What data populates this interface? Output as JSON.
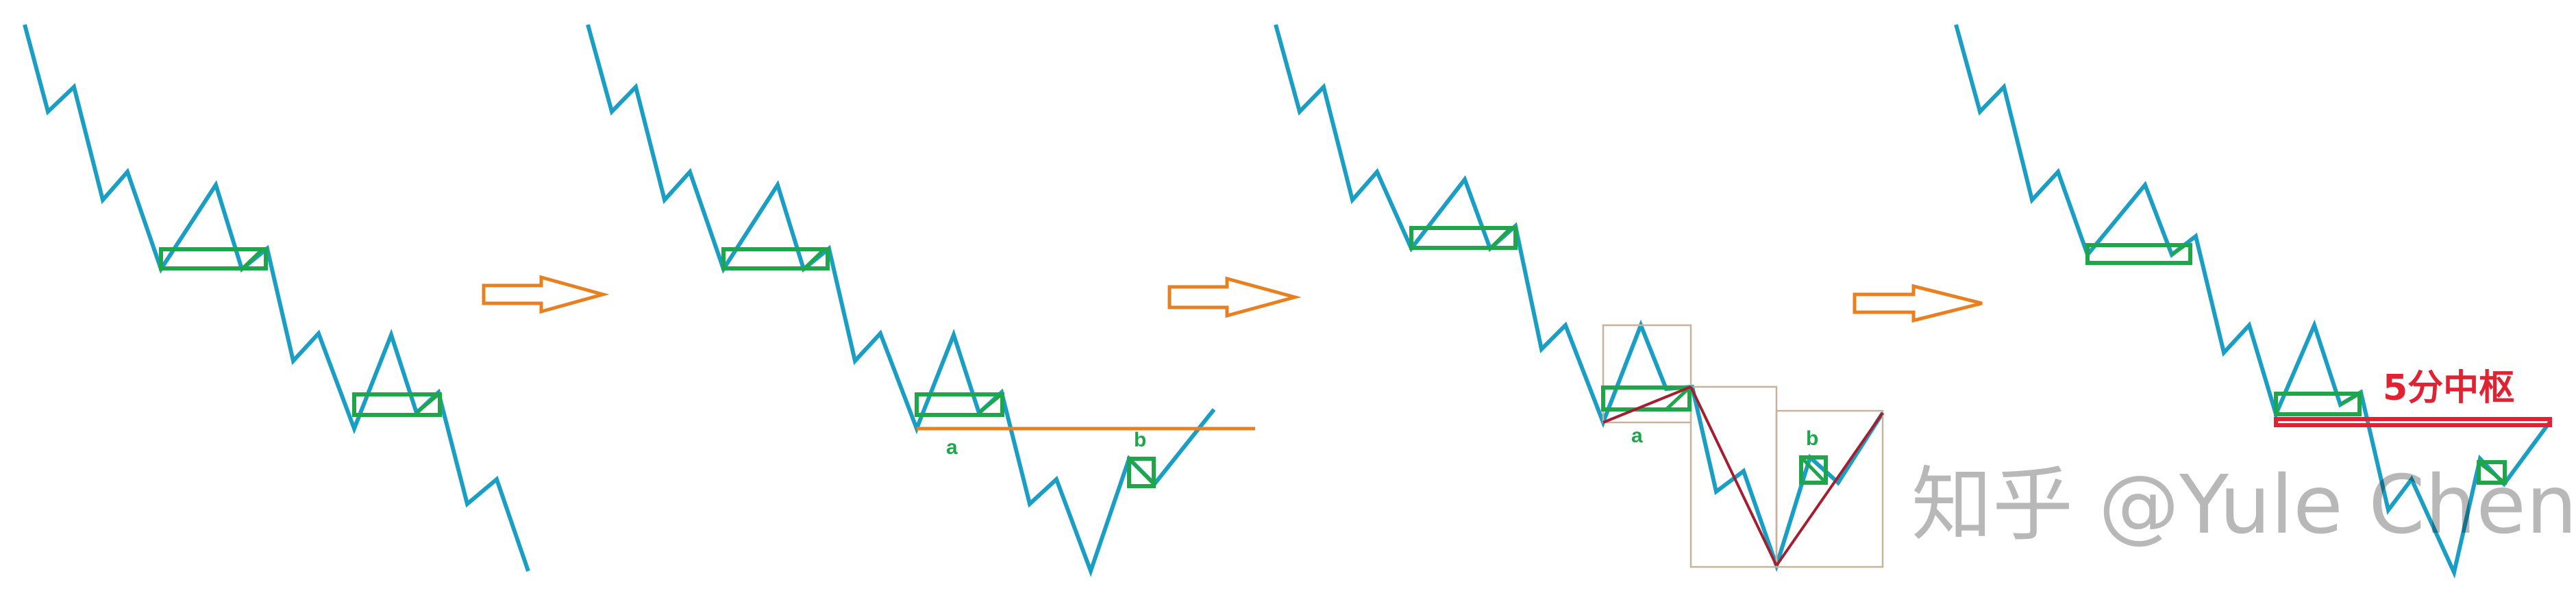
{
  "panels": [
    {
      "id": "step-1",
      "labels": {}
    },
    {
      "id": "step-2",
      "labels": {
        "a": "a",
        "b": "b"
      }
    },
    {
      "id": "step-3",
      "labels": {
        "a": "a",
        "b": "b"
      }
    },
    {
      "id": "step-4",
      "labels": {
        "pivot_title": "5分中枢"
      }
    }
  ],
  "colors": {
    "wave": "#1b9ec4",
    "pivot": "#1fa64a",
    "level_line": "#e8801f",
    "arrow": "#e8801f",
    "segment_box": "#c7b29c",
    "segment_line": "#a31e2f",
    "pivot_band": "#e02333",
    "pivot_title": "#e02333"
  },
  "watermark": {
    "site": "知乎",
    "author": "@Yule Chen"
  },
  "icons": [
    "right-arrow-icon",
    "right-arrow-icon",
    "right-arrow-icon"
  ]
}
